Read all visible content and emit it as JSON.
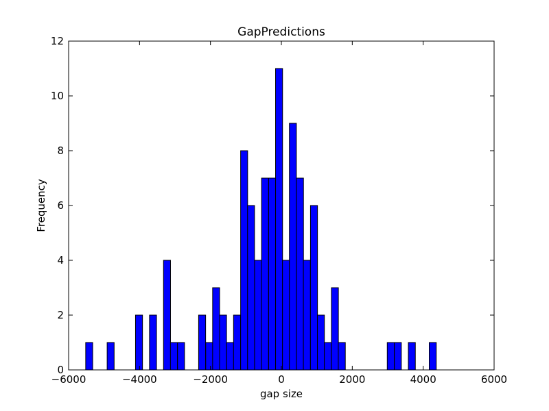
{
  "chart_data": {
    "type": "bar",
    "title": "GapPredictions",
    "xlabel": "gap size",
    "ylabel": "Frequency",
    "xlim": [
      -6000,
      6000
    ],
    "ylim": [
      0,
      12
    ],
    "xticks": [
      -6000,
      -4000,
      -2000,
      0,
      2000,
      4000,
      6000
    ],
    "xtick_labels": [
      "−6000",
      "−4000",
      "−2000",
      "0",
      "2000",
      "4000",
      "6000"
    ],
    "yticks": [
      0,
      2,
      4,
      6,
      8,
      10,
      12
    ],
    "ytick_labels": [
      "0",
      "2",
      "4",
      "6",
      "8",
      "10",
      "12"
    ],
    "bin_width": 197.5,
    "bins": [
      {
        "x": -5420,
        "value": 1
      },
      {
        "x": -4815,
        "value": 1
      },
      {
        "x": -4015,
        "value": 2
      },
      {
        "x": -3620,
        "value": 2
      },
      {
        "x": -3225,
        "value": 4
      },
      {
        "x": -3030,
        "value": 1
      },
      {
        "x": -2830,
        "value": 1
      },
      {
        "x": -2235,
        "value": 2
      },
      {
        "x": -2035,
        "value": 1
      },
      {
        "x": -1840,
        "value": 3
      },
      {
        "x": -1645,
        "value": 2
      },
      {
        "x": -1445,
        "value": 1
      },
      {
        "x": -1250,
        "value": 2
      },
      {
        "x": -1050,
        "value": 8
      },
      {
        "x": -855,
        "value": 6
      },
      {
        "x": -655,
        "value": 4
      },
      {
        "x": -460,
        "value": 7
      },
      {
        "x": -260,
        "value": 7
      },
      {
        "x": -65,
        "value": 11
      },
      {
        "x": 130,
        "value": 4
      },
      {
        "x": 325,
        "value": 9
      },
      {
        "x": 525,
        "value": 7
      },
      {
        "x": 720,
        "value": 4
      },
      {
        "x": 920,
        "value": 6
      },
      {
        "x": 1115,
        "value": 2
      },
      {
        "x": 1310,
        "value": 1
      },
      {
        "x": 1510,
        "value": 3
      },
      {
        "x": 1705,
        "value": 1
      },
      {
        "x": 3085,
        "value": 1
      },
      {
        "x": 3285,
        "value": 1
      },
      {
        "x": 3680,
        "value": 1
      },
      {
        "x": 4270,
        "value": 1
      }
    ],
    "bar_color": "#0000ff",
    "edge_color": "#000000",
    "grid": false,
    "legend": false
  }
}
